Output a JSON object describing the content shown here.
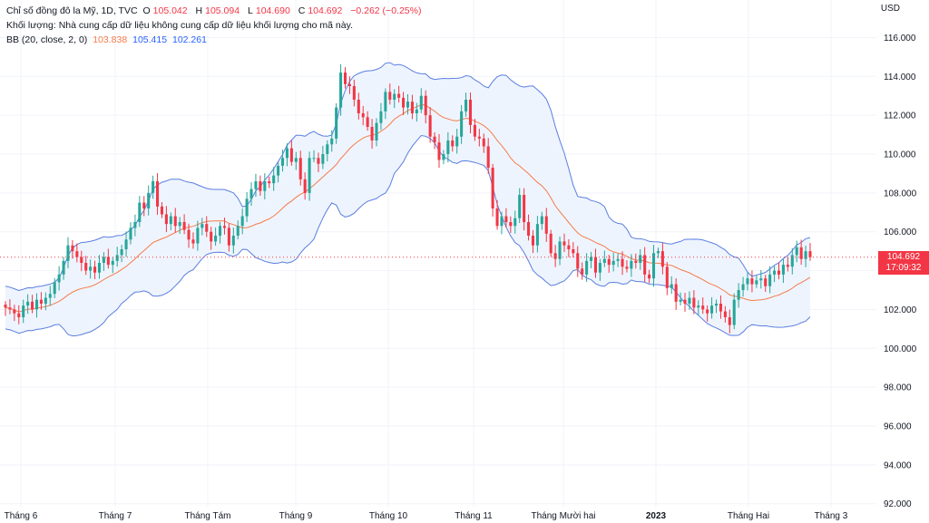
{
  "legend": {
    "title": "Chỉ số đồng đô la Mỹ, 1D, TVC",
    "open_label": "O",
    "open": "105.042",
    "high_label": "H",
    "high": "105.094",
    "low_label": "L",
    "low": "104.690",
    "close_label": "C",
    "close": "104.692",
    "change": "−0.262 (−0.25%)",
    "volume_note": "Khối lượng: Nhà cung cấp dữ liệu không cung cấp dữ liệu khối lượng cho mã này.",
    "bb_label": "BB (20, close, 2, 0)",
    "bb_basis": "103.838",
    "bb_upper": "105.415",
    "bb_lower": "102.261"
  },
  "currency": "USD",
  "last_price": {
    "value": "104.692",
    "countdown": "17:09:32"
  },
  "colors": {
    "up": "#26a69a",
    "down": "#f23645",
    "basis": "#f57c4a",
    "band": "#5b7fe0",
    "band_fill": "#eef4fd",
    "grid": "#f0f3fa",
    "text": "#131722"
  },
  "chart_data": {
    "type": "candlestick",
    "title": "Chỉ số đồng đô la Mỹ, 1D, TVC",
    "interval": "1D",
    "ylim": [
      91.8,
      117.0
    ],
    "y_ticks": [
      "116.000",
      "114.000",
      "112.000",
      "110.000",
      "108.000",
      "106.000",
      "104.000",
      "102.000",
      "100.000",
      "98.000",
      "96.000",
      "94.000",
      "92.000"
    ],
    "x_ticks": [
      "Tháng 6",
      "Tháng 7",
      "Tháng Tám",
      "Tháng 9",
      "Tháng 10",
      "Tháng 11",
      "Tháng Mười hai",
      "2023",
      "Tháng Hai",
      "Tháng 3"
    ],
    "closes": [
      102.1,
      102.0,
      101.8,
      101.6,
      102.2,
      102.4,
      102.0,
      102.5,
      102.3,
      102.6,
      102.8,
      103.4,
      103.8,
      104.5,
      105.3,
      105.0,
      104.7,
      104.4,
      104.0,
      104.2,
      103.9,
      104.4,
      104.7,
      104.3,
      104.5,
      104.8,
      105.1,
      105.6,
      106.2,
      106.5,
      107.5,
      107.2,
      108.0,
      108.6,
      107.3,
      106.9,
      106.4,
      106.8,
      106.3,
      106.5,
      106.1,
      105.6,
      105.4,
      106.2,
      106.4,
      106.0,
      105.5,
      105.8,
      106.3,
      106.2,
      105.3,
      105.8,
      106.3,
      106.8,
      107.7,
      108.2,
      108.6,
      108.1,
      108.6,
      108.5,
      108.9,
      109.4,
      109.8,
      110.3,
      109.6,
      109.8,
      108.7,
      108.0,
      109.8,
      109.8,
      109.5,
      110.0,
      110.5,
      110.8,
      112.4,
      114.2,
      113.6,
      113.5,
      112.8,
      112.1,
      111.9,
      111.4,
      110.7,
      111.6,
      112.2,
      113.2,
      112.8,
      113.1,
      112.9,
      112.4,
      112.7,
      112.1,
      112.3,
      113.0,
      112.0,
      110.9,
      110.6,
      109.7,
      110.0,
      110.7,
      110.4,
      110.9,
      112.2,
      112.8,
      111.5,
      110.9,
      110.8,
      110.4,
      109.3,
      107.2,
      106.3,
      106.8,
      106.5,
      106.3,
      106.7,
      107.9,
      106.5,
      105.8,
      105.3,
      106.4,
      106.8,
      105.9,
      104.9,
      104.6,
      105.5,
      105.3,
      105.1,
      104.9,
      104.1,
      103.8,
      104.5,
      104.7,
      103.9,
      104.4,
      104.6,
      104.3,
      104.5,
      104.6,
      104.2,
      104.1,
      104.5,
      104.4,
      104.8,
      103.8,
      103.6,
      104.9,
      105.0,
      104.2,
      103.1,
      103.3,
      102.4,
      102.5,
      102.3,
      102.6,
      102.1,
      102.2,
      102.0,
      101.8,
      102.2,
      102.3,
      101.9,
      101.6,
      101.2,
      102.5,
      103.0,
      103.3,
      103.6,
      103.3,
      103.5,
      103.6,
      103.2,
      103.8,
      104.0,
      103.8,
      104.3,
      104.2,
      104.8,
      105.2,
      104.6,
      105.0,
      104.7
    ]
  }
}
